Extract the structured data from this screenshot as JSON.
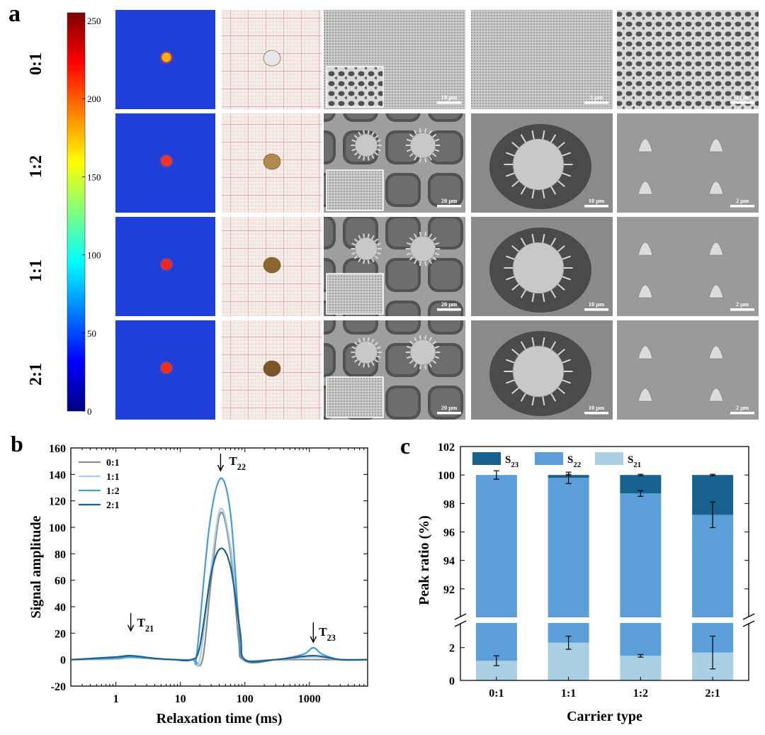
{
  "panel_a": {
    "letter": "a",
    "colorbar": {
      "ticks": [
        "250",
        "200",
        "150",
        "100",
        "50",
        "0"
      ],
      "tick_values": [
        250,
        200,
        150,
        100,
        50,
        0
      ],
      "max": 255
    },
    "rows": [
      {
        "label": "0:1",
        "mri_spot_color": "#ffb000",
        "sample_color": "#e6e6e6",
        "scale_bars": [
          "10 μm",
          "5 μm",
          "2 μm"
        ],
        "sem_style": "porous"
      },
      {
        "label": "1:2",
        "mri_spot_color": "#ff3020",
        "sample_color": "#b08a4c",
        "scale_bars": [
          "20 μm",
          "10 μm",
          "2 μm"
        ],
        "sem_style": "pollen"
      },
      {
        "label": "1:1",
        "mri_spot_color": "#ff2020",
        "sample_color": "#8a6630",
        "scale_bars": [
          "20 μm",
          "10 μm",
          "2 μm"
        ],
        "sem_style": "pollen"
      },
      {
        "label": "2:1",
        "mri_spot_color": "#ff2a10",
        "sample_color": "#7a5528",
        "scale_bars": [
          "20 μm",
          "10 μm",
          "2 μm"
        ],
        "sem_style": "pollen"
      }
    ]
  },
  "chart_data": [
    {
      "panel": "b",
      "type": "line",
      "xlabel": "Relaxation time (ms)",
      "ylabel": "Signal amplitude",
      "xscale": "log",
      "xlim": [
        0.2,
        8000
      ],
      "ylim": [
        -20,
        160
      ],
      "xticks": [
        1,
        10,
        100,
        1000
      ],
      "xtick_labels": [
        "1",
        "10",
        "100",
        "1000"
      ],
      "yticks": [
        -20,
        0,
        20,
        40,
        60,
        80,
        100,
        120,
        140,
        160
      ],
      "legend_position": "top-left",
      "annotations": [
        {
          "label": "T",
          "sub": "21",
          "x": 1.7,
          "y": 3
        },
        {
          "label": "T",
          "sub": "22",
          "x": 42,
          "y": 137
        },
        {
          "label": "T",
          "sub": "23",
          "x": 1150,
          "y": 9
        }
      ],
      "series": [
        {
          "name": "0:1",
          "color": "#8c8c8c",
          "x": [
            0.2,
            1,
            1.7,
            5,
            15,
            22,
            30,
            42,
            60,
            80,
            95,
            300,
            1150,
            3000,
            8000
          ],
          "y": [
            0,
            0.5,
            1.5,
            0.3,
            0,
            0,
            60,
            111,
            80,
            15,
            0,
            0,
            0,
            0,
            0
          ]
        },
        {
          "name": "1:1",
          "color": "#a9cfe2",
          "x": [
            0.2,
            1,
            1.7,
            5,
            15,
            20,
            30,
            42,
            60,
            85,
            100,
            300,
            1150,
            3000,
            8000
          ],
          "y": [
            0,
            0.5,
            1.5,
            0.4,
            0,
            0,
            70,
            114,
            85,
            20,
            0,
            0,
            2,
            0,
            0
          ]
        },
        {
          "name": "1:2",
          "color": "#4a9ad2",
          "x": [
            0.2,
            1,
            1.7,
            5,
            15,
            18,
            28,
            42,
            60,
            80,
            95,
            300,
            800,
            1150,
            1600,
            3000,
            8000
          ],
          "y": [
            0,
            1,
            2,
            0.5,
            0,
            5,
            100,
            137,
            110,
            30,
            0,
            0,
            4,
            9,
            4,
            0,
            0
          ]
        },
        {
          "name": "2:1",
          "color": "#1f5f8a",
          "x": [
            0.2,
            1,
            1.7,
            4,
            8,
            15,
            20,
            30,
            42,
            60,
            85,
            100,
            300,
            1150,
            3000,
            8000
          ],
          "y": [
            0,
            2,
            3,
            1,
            0,
            0,
            10,
            65,
            84,
            70,
            20,
            0,
            0,
            3,
            0,
            0
          ]
        }
      ]
    },
    {
      "panel": "c",
      "type": "bar",
      "stacked": true,
      "broken_y_axis": true,
      "xlabel": "Carrier type",
      "ylabel": "Peak ratio (%)",
      "categories": [
        "0:1",
        "1:1",
        "1:2",
        "2:1"
      ],
      "upper_ylim": [
        90,
        102
      ],
      "upper_yticks": [
        92,
        94,
        96,
        98,
        100,
        102
      ],
      "lower_ylim": [
        0,
        3.5
      ],
      "lower_yticks": [
        0,
        2
      ],
      "legend_position": "top",
      "series": [
        {
          "name": "S",
          "sub": "21",
          "color": "#a8d0e2",
          "values": [
            1.2,
            2.3,
            1.5,
            1.7
          ],
          "err": [
            0.3,
            0.4,
            0.08,
            1.0
          ]
        },
        {
          "name": "S",
          "sub": "22",
          "color": "#5b9fd8",
          "values": [
            98.8,
            97.5,
            97.2,
            95.5
          ],
          "err": [
            0.3,
            0.4,
            0.2,
            0.9
          ]
        },
        {
          "name": "S",
          "sub": "23",
          "color": "#17628f",
          "values": [
            0,
            0.2,
            1.3,
            2.8
          ],
          "err": [
            0,
            0.05,
            0.05,
            0.05
          ]
        }
      ],
      "cumulative_tops": [
        100,
        100,
        100,
        100
      ]
    }
  ]
}
